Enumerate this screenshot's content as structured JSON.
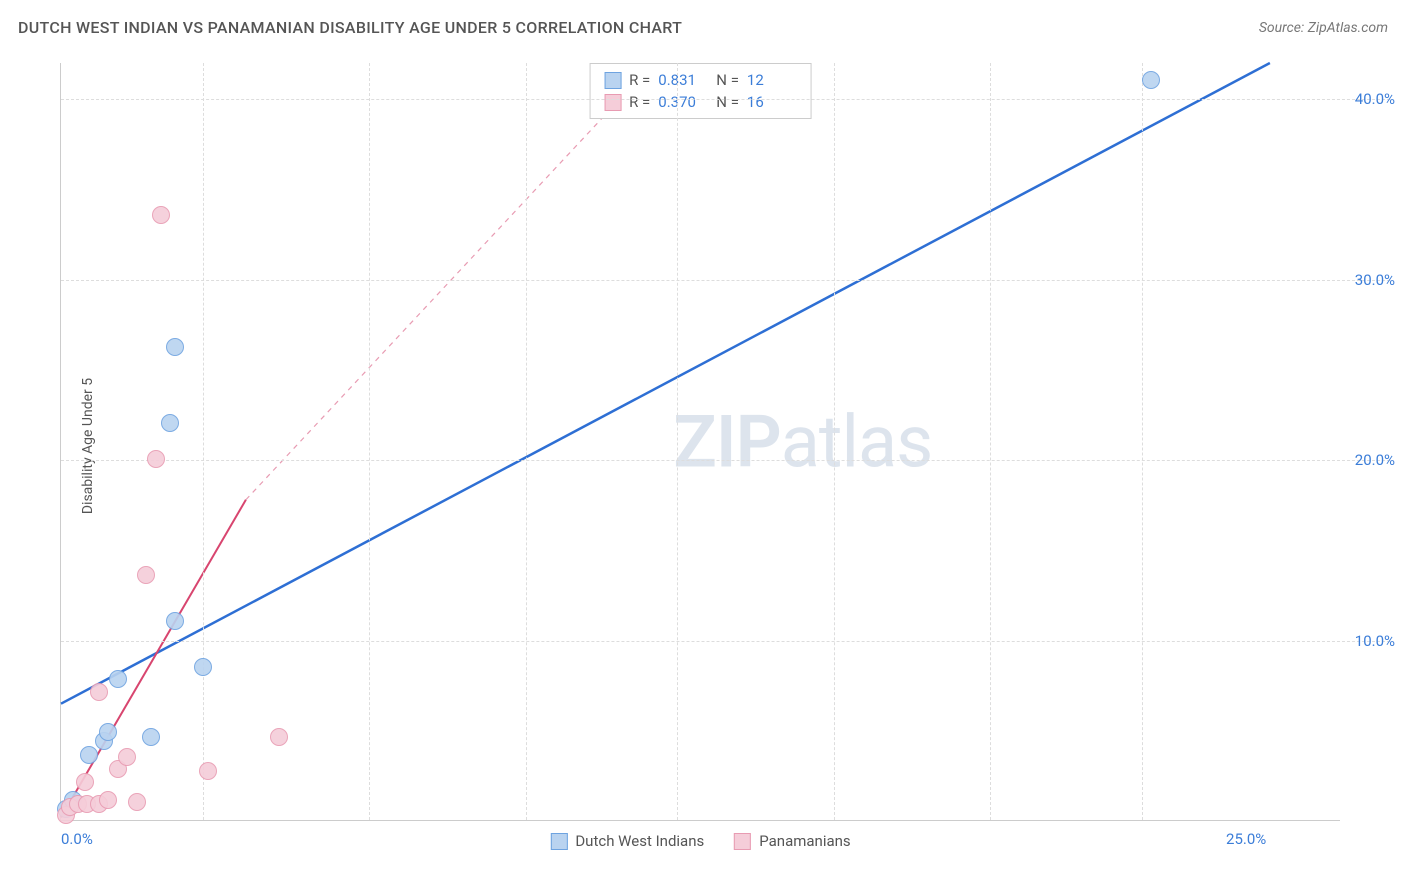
{
  "title": "DUTCH WEST INDIAN VS PANAMANIAN DISABILITY AGE UNDER 5 CORRELATION CHART",
  "source": "Source: ZipAtlas.com",
  "y_axis_label": "Disability Age Under 5",
  "watermark": {
    "bold": "ZIP",
    "light": "atlas"
  },
  "chart": {
    "type": "scatter",
    "background_color": "#ffffff",
    "grid_color": "#dddddd",
    "axis_color": "#cccccc",
    "xlim": [
      0,
      27
    ],
    "ylim": [
      0,
      42
    ],
    "x_ticks": [
      0.0,
      25.0
    ],
    "y_ticks": [
      10.0,
      20.0,
      30.0,
      40.0
    ],
    "x_tick_format": "{v}%",
    "y_tick_format": "{v}%",
    "x_gridlines_at": [
      3.0,
      6.5,
      9.8,
      13.0,
      16.3,
      19.6,
      22.8
    ],
    "tick_label_color": "#3b7dd8",
    "tick_label_fontsize": 15,
    "marker_radius": 9,
    "marker_stroke_width": 1.5,
    "marker_fill_opacity": 0.25
  },
  "series": [
    {
      "name": "Dutch West Indians",
      "color_stroke": "#6ea3e0",
      "color_fill": "#b9d3f0",
      "r_value": "0.831",
      "n_value": "12",
      "trend": {
        "x1": 0,
        "y1": 6.5,
        "x2": 25.5,
        "y2": 42,
        "width": 2.5,
        "color": "#2e6fd4",
        "dashed_extension": false
      },
      "points": [
        {
          "x": 0.1,
          "y": 0.6
        },
        {
          "x": 0.25,
          "y": 1.1
        },
        {
          "x": 0.6,
          "y": 3.6
        },
        {
          "x": 0.9,
          "y": 4.4
        },
        {
          "x": 1.0,
          "y": 4.9
        },
        {
          "x": 1.9,
          "y": 4.6
        },
        {
          "x": 1.2,
          "y": 7.8
        },
        {
          "x": 2.4,
          "y": 11.0
        },
        {
          "x": 3.0,
          "y": 8.5
        },
        {
          "x": 2.3,
          "y": 22.0
        },
        {
          "x": 2.4,
          "y": 26.2
        },
        {
          "x": 23.0,
          "y": 41.0
        }
      ]
    },
    {
      "name": "Panamanians",
      "color_stroke": "#e89bb2",
      "color_fill": "#f5cdd9",
      "r_value": "0.370",
      "n_value": "16",
      "trend": {
        "x1": 0,
        "y1": 0.2,
        "x2": 3.9,
        "y2": 17.8,
        "width": 2,
        "color": "#d8456f",
        "dashed_extension": true,
        "dash_x2": 12.5,
        "dash_y2": 42
      },
      "points": [
        {
          "x": 0.1,
          "y": 0.3
        },
        {
          "x": 0.2,
          "y": 0.7
        },
        {
          "x": 0.35,
          "y": 0.9
        },
        {
          "x": 0.55,
          "y": 0.9
        },
        {
          "x": 0.8,
          "y": 0.9
        },
        {
          "x": 1.0,
          "y": 1.1
        },
        {
          "x": 1.6,
          "y": 1.0
        },
        {
          "x": 0.5,
          "y": 2.1
        },
        {
          "x": 1.2,
          "y": 2.8
        },
        {
          "x": 1.4,
          "y": 3.5
        },
        {
          "x": 3.1,
          "y": 2.7
        },
        {
          "x": 4.6,
          "y": 4.6
        },
        {
          "x": 0.8,
          "y": 7.1
        },
        {
          "x": 1.8,
          "y": 13.6
        },
        {
          "x": 2.0,
          "y": 20.0
        },
        {
          "x": 2.1,
          "y": 33.5
        }
      ]
    }
  ],
  "legend_top": {
    "r_label": "R =",
    "n_label": "N ="
  }
}
